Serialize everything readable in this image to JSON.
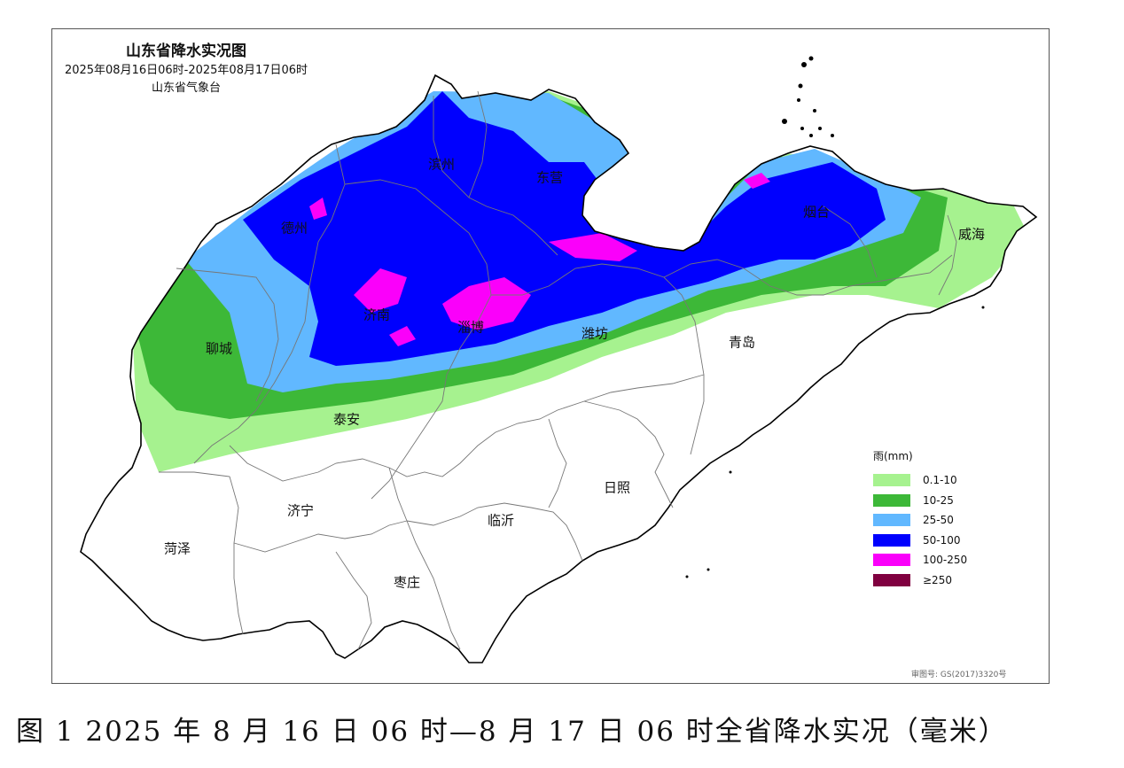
{
  "map": {
    "title": "山东省降水实况图",
    "period": "2025年08月16日06时-2025年08月17日06时",
    "source": "山东省气象台",
    "cities": [
      {
        "name": "滨州"
      },
      {
        "name": "东营"
      },
      {
        "name": "德州"
      },
      {
        "name": "烟台"
      },
      {
        "name": "威海"
      },
      {
        "name": "济南"
      },
      {
        "name": "淄博"
      },
      {
        "name": "潍坊"
      },
      {
        "name": "聊城"
      },
      {
        "name": "青岛"
      },
      {
        "name": "泰安"
      },
      {
        "name": "日照"
      },
      {
        "name": "济宁"
      },
      {
        "name": "临沂"
      },
      {
        "name": "菏泽"
      },
      {
        "name": "枣庄"
      }
    ]
  },
  "legend": {
    "title": "雨(mm)",
    "items": [
      {
        "label": "0.1-10",
        "color": "#a6f28f"
      },
      {
        "label": "10-25",
        "color": "#3db838"
      },
      {
        "label": "25-50",
        "color": "#61b8ff"
      },
      {
        "label": "50-100",
        "color": "#0000fe"
      },
      {
        "label": "100-250",
        "color": "#fa00fa"
      },
      {
        "label": "≥250",
        "color": "#800040"
      }
    ]
  },
  "approval_number": "审图号: GS(2017)3320号",
  "caption": "图 1 2025 年 8 月 16 日 06 时—8 月 17 日 06 时全省降水实况（毫米）"
}
